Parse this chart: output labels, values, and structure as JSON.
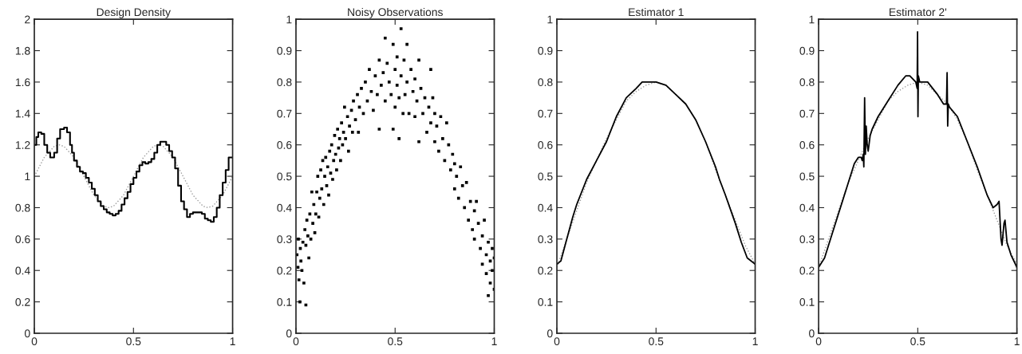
{
  "chart_data": [
    {
      "type": "step",
      "title": "Design Density",
      "xlim": [
        0,
        1
      ],
      "ylim": [
        0,
        2
      ],
      "xticks": [
        0,
        0.5,
        1
      ],
      "yticks": [
        0,
        0.2,
        0.4,
        0.6,
        0.8,
        1,
        1.2,
        1.4,
        1.6,
        1.8,
        2
      ],
      "grid": false,
      "legend": false,
      "series": [
        {
          "type": "line",
          "color": "#999999",
          "line_style": "dotted",
          "x": [
            0,
            0.05,
            0.1,
            0.125,
            0.15,
            0.2,
            0.25,
            0.3,
            0.35,
            0.375,
            0.4,
            0.45,
            0.5,
            0.55,
            0.6,
            0.625,
            0.65,
            0.7,
            0.75,
            0.8,
            0.85,
            0.875,
            0.9,
            0.95,
            1
          ],
          "values": [
            1.0,
            1.12,
            1.19,
            1.2,
            1.19,
            1.12,
            1.0,
            0.88,
            0.81,
            0.8,
            0.81,
            0.88,
            1.0,
            1.12,
            1.19,
            1.2,
            1.19,
            1.12,
            1.0,
            0.88,
            0.81,
            0.8,
            0.81,
            0.88,
            1.0
          ]
        },
        {
          "type": "step",
          "color": "#000000",
          "line_style": "solid",
          "x": [
            0,
            0.01,
            0.02,
            0.035,
            0.05,
            0.065,
            0.08,
            0.1,
            0.115,
            0.13,
            0.15,
            0.165,
            0.18,
            0.19,
            0.2,
            0.215,
            0.23,
            0.245,
            0.26,
            0.275,
            0.29,
            0.305,
            0.32,
            0.335,
            0.35,
            0.365,
            0.38,
            0.395,
            0.41,
            0.425,
            0.44,
            0.455,
            0.47,
            0.485,
            0.5,
            0.515,
            0.53,
            0.545,
            0.56,
            0.575,
            0.59,
            0.605,
            0.62,
            0.635,
            0.65,
            0.665,
            0.68,
            0.695,
            0.71,
            0.725,
            0.74,
            0.755,
            0.77,
            0.785,
            0.8,
            0.815,
            0.83,
            0.845,
            0.86,
            0.875,
            0.89,
            0.905,
            0.92,
            0.935,
            0.95,
            0.965,
            0.98,
            0.99,
            1
          ],
          "values": [
            1.2,
            1.25,
            1.28,
            1.27,
            1.2,
            1.15,
            1.12,
            1.15,
            1.24,
            1.3,
            1.31,
            1.28,
            1.2,
            1.15,
            1.1,
            1.06,
            1.03,
            1.02,
            0.99,
            0.96,
            0.92,
            0.88,
            0.84,
            0.81,
            0.79,
            0.77,
            0.76,
            0.75,
            0.76,
            0.78,
            0.82,
            0.86,
            0.9,
            0.95,
            0.99,
            1.03,
            1.07,
            1.09,
            1.08,
            1.09,
            1.11,
            1.15,
            1.2,
            1.22,
            1.22,
            1.2,
            1.16,
            1.12,
            1.05,
            0.94,
            0.84,
            0.79,
            0.74,
            0.76,
            0.77,
            0.77,
            0.77,
            0.76,
            0.73,
            0.72,
            0.71,
            0.74,
            0.8,
            0.88,
            0.96,
            1.04,
            1.12,
            1.12,
            1.12
          ]
        }
      ]
    },
    {
      "type": "scatter",
      "title": "Noisy Observations",
      "xlim": [
        0,
        1
      ],
      "ylim": [
        0,
        1
      ],
      "xticks": [
        0,
        0.5,
        1
      ],
      "yticks": [
        0,
        0.1,
        0.2,
        0.3,
        0.4,
        0.5,
        0.6,
        0.7,
        0.8,
        0.9,
        1
      ],
      "grid": false,
      "legend": false,
      "series": [
        {
          "type": "scatter",
          "color": "#000000",
          "marker": "square",
          "x": [
            0.005,
            0.01,
            0.012,
            0.015,
            0.02,
            0.022,
            0.025,
            0.03,
            0.035,
            0.04,
            0.045,
            0.05,
            0.05,
            0.055,
            0.06,
            0.065,
            0.07,
            0.075,
            0.08,
            0.085,
            0.09,
            0.095,
            0.1,
            0.105,
            0.11,
            0.115,
            0.12,
            0.125,
            0.13,
            0.135,
            0.14,
            0.145,
            0.15,
            0.155,
            0.16,
            0.165,
            0.17,
            0.175,
            0.18,
            0.185,
            0.19,
            0.195,
            0.2,
            0.205,
            0.21,
            0.215,
            0.22,
            0.225,
            0.23,
            0.235,
            0.24,
            0.245,
            0.25,
            0.26,
            0.265,
            0.27,
            0.28,
            0.285,
            0.29,
            0.3,
            0.31,
            0.315,
            0.32,
            0.33,
            0.34,
            0.35,
            0.36,
            0.37,
            0.38,
            0.39,
            0.4,
            0.41,
            0.42,
            0.42,
            0.43,
            0.44,
            0.45,
            0.45,
            0.46,
            0.47,
            0.48,
            0.49,
            0.49,
            0.5,
            0.5,
            0.51,
            0.51,
            0.52,
            0.52,
            0.53,
            0.53,
            0.54,
            0.545,
            0.55,
            0.56,
            0.56,
            0.57,
            0.58,
            0.59,
            0.6,
            0.6,
            0.61,
            0.62,
            0.62,
            0.63,
            0.64,
            0.65,
            0.66,
            0.67,
            0.68,
            0.68,
            0.69,
            0.7,
            0.7,
            0.71,
            0.72,
            0.73,
            0.74,
            0.75,
            0.76,
            0.77,
            0.78,
            0.79,
            0.8,
            0.8,
            0.81,
            0.82,
            0.83,
            0.84,
            0.85,
            0.86,
            0.87,
            0.88,
            0.89,
            0.9,
            0.9,
            0.91,
            0.92,
            0.93,
            0.94,
            0.94,
            0.95,
            0.96,
            0.96,
            0.97,
            0.97,
            0.98,
            0.98,
            0.99,
            0.99,
            1.0,
            1.0
          ],
          "values": [
            0.25,
            0.21,
            0.3,
            0.17,
            0.1,
            0.27,
            0.23,
            0.2,
            0.29,
            0.16,
            0.33,
            0.09,
            0.28,
            0.36,
            0.31,
            0.24,
            0.38,
            0.3,
            0.45,
            0.35,
            0.41,
            0.32,
            0.38,
            0.45,
            0.5,
            0.37,
            0.43,
            0.52,
            0.46,
            0.55,
            0.41,
            0.5,
            0.56,
            0.47,
            0.53,
            0.44,
            0.58,
            0.51,
            0.6,
            0.49,
            0.55,
            0.63,
            0.57,
            0.52,
            0.65,
            0.59,
            0.62,
            0.55,
            0.67,
            0.6,
            0.64,
            0.72,
            0.62,
            0.69,
            0.58,
            0.66,
            0.71,
            0.64,
            0.74,
            0.68,
            0.76,
            0.64,
            0.72,
            0.78,
            0.7,
            0.8,
            0.74,
            0.84,
            0.77,
            0.71,
            0.82,
            0.76,
            0.65,
            0.87,
            0.79,
            0.83,
            0.94,
            0.74,
            0.86,
            0.8,
            0.76,
            0.92,
            0.65,
            0.84,
            0.72,
            0.88,
            0.79,
            0.62,
            0.75,
            0.97,
            0.82,
            0.7,
            0.87,
            0.76,
            0.92,
            0.8,
            0.7,
            0.84,
            0.77,
            0.69,
            0.81,
            0.74,
            0.87,
            0.61,
            0.78,
            0.7,
            0.75,
            0.64,
            0.72,
            0.84,
            0.67,
            0.75,
            0.61,
            0.7,
            0.66,
            0.58,
            0.69,
            0.62,
            0.55,
            0.67,
            0.6,
            0.52,
            0.57,
            0.46,
            0.54,
            0.5,
            0.43,
            0.53,
            0.47,
            0.4,
            0.48,
            0.36,
            0.42,
            0.33,
            0.39,
            0.3,
            0.42,
            0.35,
            0.27,
            0.31,
            0.22,
            0.36,
            0.25,
            0.19,
            0.29,
            0.12,
            0.23,
            0.16,
            0.27,
            0.2,
            0.14,
            0.24
          ]
        }
      ]
    },
    {
      "type": "line",
      "title": "Estimator 1",
      "xlim": [
        0,
        1
      ],
      "ylim": [
        0,
        1
      ],
      "xticks": [
        0,
        0.5,
        1
      ],
      "yticks": [
        0,
        0.1,
        0.2,
        0.3,
        0.4,
        0.5,
        0.6,
        0.7,
        0.8,
        0.9,
        1
      ],
      "grid": false,
      "legend": false,
      "series": [
        {
          "color": "#999999",
          "line_style": "dotted",
          "x": [
            0,
            0.05,
            0.1,
            0.15,
            0.2,
            0.25,
            0.3,
            0.35,
            0.4,
            0.45,
            0.5,
            0.55,
            0.6,
            0.65,
            0.7,
            0.75,
            0.8,
            0.85,
            0.9,
            0.95,
            1
          ],
          "values": [
            0.21,
            0.3,
            0.39,
            0.48,
            0.55,
            0.62,
            0.68,
            0.74,
            0.77,
            0.79,
            0.8,
            0.79,
            0.76,
            0.73,
            0.68,
            0.61,
            0.52,
            0.44,
            0.36,
            0.28,
            0.22
          ]
        },
        {
          "color": "#000000",
          "line_style": "solid",
          "x": [
            0,
            0.02,
            0.05,
            0.08,
            0.1,
            0.15,
            0.2,
            0.25,
            0.3,
            0.35,
            0.4,
            0.43,
            0.45,
            0.5,
            0.55,
            0.6,
            0.65,
            0.7,
            0.75,
            0.8,
            0.82,
            0.85,
            0.9,
            0.93,
            0.96,
            1
          ],
          "values": [
            0.22,
            0.23,
            0.3,
            0.37,
            0.41,
            0.49,
            0.55,
            0.61,
            0.69,
            0.75,
            0.78,
            0.8,
            0.8,
            0.8,
            0.79,
            0.76,
            0.73,
            0.68,
            0.61,
            0.53,
            0.49,
            0.44,
            0.35,
            0.29,
            0.24,
            0.22
          ]
        }
      ]
    },
    {
      "type": "line",
      "title": "Estimator 2'",
      "xlim": [
        0,
        1
      ],
      "ylim": [
        0,
        1
      ],
      "xticks": [
        0,
        0.5,
        1
      ],
      "yticks": [
        0,
        0.1,
        0.2,
        0.3,
        0.4,
        0.5,
        0.6,
        0.7,
        0.8,
        0.9,
        1
      ],
      "grid": false,
      "legend": false,
      "series": [
        {
          "color": "#999999",
          "line_style": "dotted",
          "x": [
            0,
            0.05,
            0.1,
            0.15,
            0.2,
            0.25,
            0.3,
            0.35,
            0.4,
            0.45,
            0.5,
            0.55,
            0.6,
            0.65,
            0.7,
            0.75,
            0.8,
            0.85,
            0.9,
            0.95,
            1
          ],
          "values": [
            0.21,
            0.3,
            0.39,
            0.48,
            0.55,
            0.62,
            0.68,
            0.74,
            0.77,
            0.79,
            0.8,
            0.79,
            0.76,
            0.73,
            0.68,
            0.61,
            0.52,
            0.44,
            0.36,
            0.28,
            0.22
          ]
        },
        {
          "color": "#000000",
          "line_style": "solid",
          "x": [
            0,
            0.03,
            0.06,
            0.1,
            0.14,
            0.18,
            0.2,
            0.215,
            0.22,
            0.225,
            0.228,
            0.232,
            0.236,
            0.24,
            0.245,
            0.25,
            0.26,
            0.27,
            0.3,
            0.35,
            0.4,
            0.44,
            0.46,
            0.49,
            0.497,
            0.499,
            0.501,
            0.503,
            0.51,
            0.55,
            0.6,
            0.63,
            0.645,
            0.648,
            0.651,
            0.654,
            0.66,
            0.7,
            0.75,
            0.8,
            0.85,
            0.88,
            0.9,
            0.91,
            0.92,
            0.925,
            0.935,
            0.94,
            0.95,
            0.97,
            1
          ],
          "values": [
            0.21,
            0.24,
            0.3,
            0.38,
            0.46,
            0.54,
            0.56,
            0.56,
            0.55,
            0.57,
            0.53,
            0.75,
            0.57,
            0.66,
            0.6,
            0.58,
            0.63,
            0.65,
            0.69,
            0.74,
            0.79,
            0.82,
            0.82,
            0.8,
            0.78,
            0.96,
            0.69,
            0.82,
            0.8,
            0.8,
            0.76,
            0.73,
            0.73,
            0.83,
            0.66,
            0.73,
            0.72,
            0.69,
            0.61,
            0.53,
            0.44,
            0.4,
            0.41,
            0.42,
            0.3,
            0.28,
            0.35,
            0.36,
            0.29,
            0.25,
            0.21
          ]
        }
      ]
    }
  ]
}
